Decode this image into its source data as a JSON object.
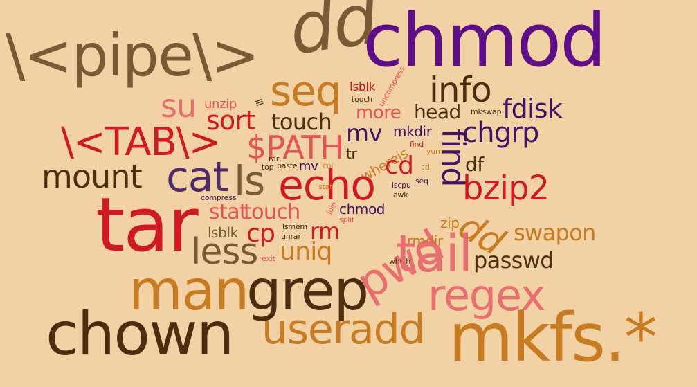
{
  "colors": {
    "background": "#f2d1a5",
    "olive": "#7a5a36",
    "purple": "#5e0f87",
    "darkbrown": "#4d2d10",
    "orange": "#c77b22",
    "red": "#cc1b22",
    "coral": "#e25555",
    "pink": "#e86f70",
    "violet": "#4e2a69",
    "darkpurple": "#451265"
  },
  "words": [
    {
      "text": "\\<pipe\\>",
      "color": "olive"
    },
    {
      "text": "dd",
      "color": "olive"
    },
    {
      "text": "chmod",
      "color": "purple"
    },
    {
      "text": "seq",
      "color": "orange"
    },
    {
      "text": "info",
      "color": "darkbrown"
    },
    {
      "text": "su",
      "color": "pink"
    },
    {
      "text": "unzip",
      "color": "coral"
    },
    {
      "text": "lsblk",
      "color": "red"
    },
    {
      "text": "touch",
      "color": "darkbrown"
    },
    {
      "text": "uncompress",
      "color": "coral"
    },
    {
      "text": "fdisk",
      "color": "darkpurple"
    },
    {
      "text": "≡",
      "color": "darkbrown"
    },
    {
      "text": "more",
      "color": "coral"
    },
    {
      "text": "head",
      "color": "darkbrown"
    },
    {
      "text": "mkswap",
      "color": "darkbrown"
    },
    {
      "text": "sort",
      "color": "red"
    },
    {
      "text": "touch",
      "color": "darkbrown"
    },
    {
      "text": "\\<TAB\\>",
      "color": "red"
    },
    {
      "text": "$PATH",
      "color": "coral"
    },
    {
      "text": "mv",
      "color": "darkpurple"
    },
    {
      "text": "mkdir",
      "color": "darkpurple"
    },
    {
      "text": "find",
      "color": "darkpurple"
    },
    {
      "text": "chgrp",
      "color": "darkpurple"
    },
    {
      "text": "tr",
      "color": "darkbrown"
    },
    {
      "text": "whereis",
      "color": "orange"
    },
    {
      "text": "find",
      "color": "red"
    },
    {
      "text": "yum",
      "color": "orange"
    },
    {
      "text": "df",
      "color": "darkbrown"
    },
    {
      "text": "rar",
      "color": "darkbrown"
    },
    {
      "text": "mount",
      "color": "darkbrown"
    },
    {
      "text": "cat",
      "color": "violet"
    },
    {
      "text": "ls",
      "color": "olive"
    },
    {
      "text": "top",
      "color": "darkbrown"
    },
    {
      "text": "paste",
      "color": "darkbrown"
    },
    {
      "text": "mv",
      "color": "darkpurple"
    },
    {
      "text": "col",
      "color": "orange"
    },
    {
      "text": "cd",
      "color": "red"
    },
    {
      "text": "cd",
      "color": "orange"
    },
    {
      "text": "echo",
      "color": "red"
    },
    {
      "text": "lscpu",
      "color": "darkpurple"
    },
    {
      "text": "seq",
      "color": "darkpurple"
    },
    {
      "text": "stat",
      "color": "orange"
    },
    {
      "text": "bzip2",
      "color": "red"
    },
    {
      "text": "awk",
      "color": "darkbrown"
    },
    {
      "text": "compress",
      "color": "darkpurple"
    },
    {
      "text": "tar",
      "color": "red"
    },
    {
      "text": "stat",
      "color": "coral"
    },
    {
      "text": "touch",
      "color": "coral"
    },
    {
      "text": "join",
      "color": "coral"
    },
    {
      "text": "chmod",
      "color": "darkpurple"
    },
    {
      "text": "split",
      "color": "coral"
    },
    {
      "text": "pwd",
      "color": "pink"
    },
    {
      "text": "dd",
      "color": "orange"
    },
    {
      "text": "zip",
      "color": "orange"
    },
    {
      "text": "swapon",
      "color": "orange"
    },
    {
      "text": "lsblk",
      "color": "olive"
    },
    {
      "text": "lsmem",
      "color": "darkbrown"
    },
    {
      "text": "unrar",
      "color": "darkbrown"
    },
    {
      "text": "cp",
      "color": "red"
    },
    {
      "text": "rm",
      "color": "red"
    },
    {
      "text": "rmdir",
      "color": "orange"
    },
    {
      "text": "less",
      "color": "olive"
    },
    {
      "text": "exit",
      "color": "coral"
    },
    {
      "text": "uniq",
      "color": "orange"
    },
    {
      "text": "which",
      "color": "darkbrown"
    },
    {
      "text": "tail",
      "color": "pink"
    },
    {
      "text": "passwd",
      "color": "darkbrown"
    },
    {
      "text": "man",
      "color": "orange"
    },
    {
      "text": "grep",
      "color": "darkbrown"
    },
    {
      "text": "regex",
      "color": "pink"
    },
    {
      "text": "chown",
      "color": "darkbrown"
    },
    {
      "text": "useradd",
      "color": "orange"
    },
    {
      "text": "mkfs.*",
      "color": "orange"
    }
  ]
}
